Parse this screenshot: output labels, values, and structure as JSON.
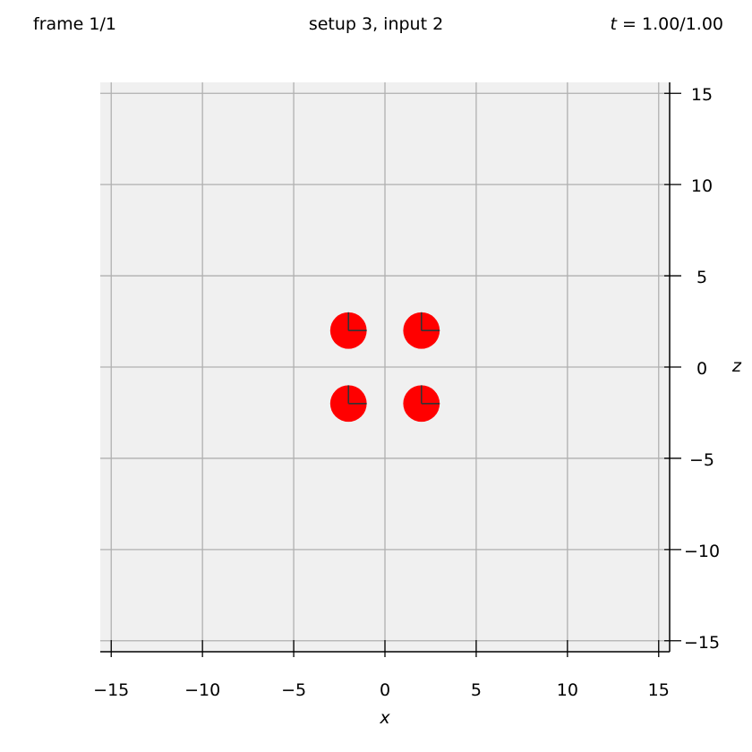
{
  "header": {
    "frame": "frame 1/1",
    "setup": "setup 3, input 2",
    "time_var": "t",
    "time_value": " = 1.00/1.00"
  },
  "chart_data": {
    "type": "scatter",
    "xlabel": "x",
    "zlabel": "z",
    "xlim": [
      -15.6,
      15.6
    ],
    "zlim": [
      -15.6,
      15.6
    ],
    "xticks": [
      -15,
      -10,
      -5,
      0,
      5,
      10,
      15
    ],
    "zticks": [
      -15,
      -10,
      -5,
      0,
      5,
      10,
      15
    ],
    "grid": true,
    "background_color": "#f0f0f0",
    "grid_color": "#b0b0b0",
    "marker_color": "#ff0000",
    "marker_radius_data": 1.0,
    "points": [
      {
        "x": -2,
        "z": 2
      },
      {
        "x": 2,
        "z": 2
      },
      {
        "x": -2,
        "z": -2
      },
      {
        "x": 2,
        "z": -2
      }
    ]
  }
}
